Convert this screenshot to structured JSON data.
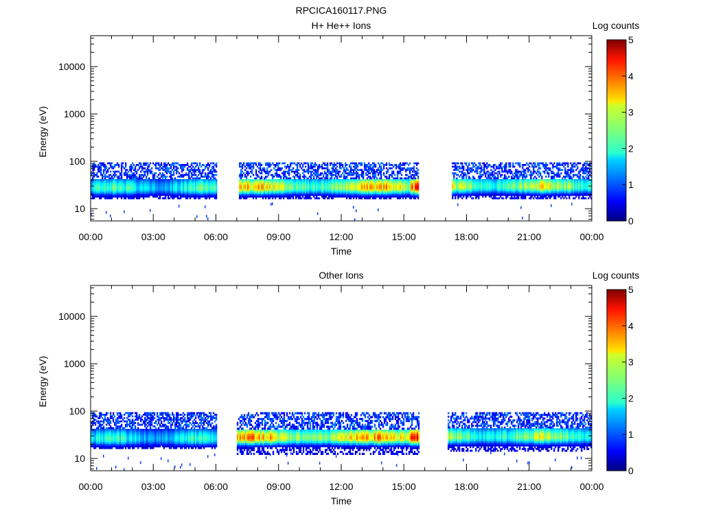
{
  "title": "RPCICA160117.PNG",
  "chart_data": [
    {
      "type": "heatmap",
      "title": "H+ He++ Ions",
      "xlabel": "Time",
      "ylabel": "Energy (eV)",
      "x_ticks": [
        "00:00",
        "03:00",
        "06:00",
        "09:00",
        "12:00",
        "15:00",
        "18:00",
        "21:00",
        "00:00"
      ],
      "xlim_hours": [
        0,
        24
      ],
      "y_scale": "log",
      "ylim": [
        5.5,
        45000
      ],
      "y_ticks": [
        10,
        100,
        1000,
        10000
      ],
      "y_tick_labels": [
        "10",
        "100",
        "1000",
        "10000"
      ],
      "colorbar": {
        "label": "Log counts",
        "range": [
          0,
          5
        ],
        "ticks": [
          "0",
          "1",
          "2",
          "3",
          "4",
          "5"
        ],
        "colormap": "jet"
      },
      "data_segments": [
        {
          "start_hour": 0.0,
          "end_hour": 6.0,
          "energy_min": 16,
          "energy_max": 95,
          "core_energy": 26,
          "peak_log_counts": 2.4
        },
        {
          "start_hour": 7.1,
          "end_hour": 15.7,
          "energy_min": 16,
          "energy_max": 95,
          "core_energy": 27,
          "peak_log_counts": 3.6
        },
        {
          "start_hour": 17.3,
          "end_hour": 24.0,
          "energy_min": 16,
          "energy_max": 95,
          "core_energy": 28,
          "peak_log_counts": 3.2
        }
      ]
    },
    {
      "type": "heatmap",
      "title": "Other Ions",
      "xlabel": "Time",
      "ylabel": "Energy (eV)",
      "x_ticks": [
        "00:00",
        "03:00",
        "06:00",
        "09:00",
        "12:00",
        "15:00",
        "18:00",
        "21:00",
        "00:00"
      ],
      "xlim_hours": [
        0,
        24
      ],
      "y_scale": "log",
      "ylim": [
        5.5,
        45000
      ],
      "y_ticks": [
        10,
        100,
        1000,
        10000
      ],
      "y_tick_labels": [
        "10",
        "100",
        "1000",
        "10000"
      ],
      "colorbar": {
        "label": "Log counts",
        "range": [
          0,
          5
        ],
        "ticks": [
          "0",
          "1",
          "2",
          "3",
          "4",
          "5"
        ],
        "colormap": "jet"
      },
      "data_segments": [
        {
          "start_hour": 0.0,
          "end_hour": 6.0,
          "energy_min": 16,
          "energy_max": 95,
          "core_energy": 25,
          "peak_log_counts": 2.2
        },
        {
          "start_hour": 7.0,
          "end_hour": 15.7,
          "energy_min": 12,
          "energy_max": 95,
          "core_energy": 26,
          "peak_log_counts": 3.8
        },
        {
          "start_hour": 17.1,
          "end_hour": 24.0,
          "energy_min": 14,
          "energy_max": 95,
          "core_energy": 27,
          "peak_log_counts": 3.0
        }
      ]
    }
  ]
}
